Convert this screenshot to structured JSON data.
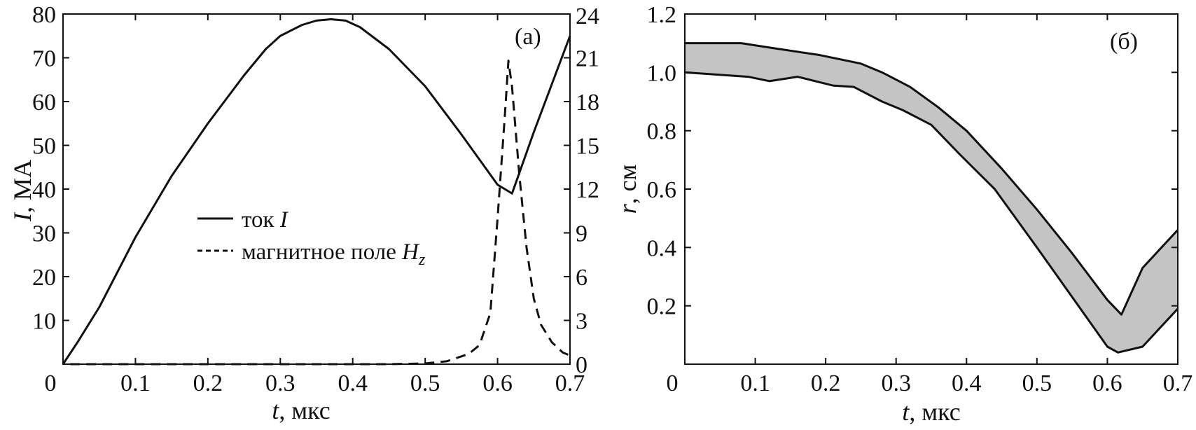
{
  "chart_data": [
    {
      "type": "line",
      "panel_label": "(а)",
      "x_axis": {
        "label_var": "t",
        "label_unit": ", мкс",
        "range": [
          0,
          0.7
        ],
        "ticks": [
          0,
          0.1,
          0.2,
          0.3,
          0.4,
          0.5,
          0.6,
          0.7
        ],
        "tick_labels": [
          "0",
          "0.1",
          "0.2",
          "0.3",
          "0.4",
          "0.5",
          "0.6",
          "0.7"
        ]
      },
      "y_axis_left": {
        "label_var": "I",
        "label_unit": ", МА",
        "range": [
          0,
          80
        ],
        "ticks": [
          0,
          10,
          20,
          30,
          40,
          50,
          60,
          70,
          80
        ],
        "tick_labels": [
          "",
          "10",
          "20",
          "30",
          "40",
          "50",
          "60",
          "70",
          "80"
        ]
      },
      "y_axis_right": {
        "range": [
          0,
          24
        ],
        "ticks": [
          0,
          3,
          6,
          9,
          12,
          15,
          18,
          21,
          24
        ],
        "tick_labels": [
          "0",
          "3",
          "6",
          "9",
          "12",
          "15",
          "18",
          "21",
          "24"
        ]
      },
      "legend": {
        "placement": "center-left",
        "entries": [
          {
            "style": "solid",
            "text": "ток ",
            "var": "I",
            "sub": ""
          },
          {
            "style": "dashed",
            "text": "магнитное поле ",
            "var": "H",
            "sub": "z"
          }
        ]
      },
      "series": [
        {
          "style": "solid",
          "axis": "left",
          "x": [
            0,
            0.02,
            0.05,
            0.1,
            0.15,
            0.2,
            0.25,
            0.28,
            0.3,
            0.33,
            0.35,
            0.37,
            0.39,
            0.41,
            0.45,
            0.5,
            0.55,
            0.6,
            0.62,
            0.65,
            0.7
          ],
          "y": [
            0,
            5,
            13,
            29,
            43,
            55,
            66,
            72,
            75,
            77.5,
            78.5,
            78.8,
            78.5,
            77,
            72,
            63.5,
            52.5,
            41,
            39,
            53,
            75
          ]
        },
        {
          "style": "dashed",
          "axis": "right",
          "x": [
            0.01,
            0.1,
            0.3,
            0.45,
            0.5,
            0.53,
            0.56,
            0.575,
            0.59,
            0.6,
            0.61,
            0.615,
            0.62,
            0.63,
            0.64,
            0.65,
            0.66,
            0.675,
            0.69,
            0.7
          ],
          "y": [
            0,
            0,
            0,
            0,
            0.05,
            0.2,
            0.7,
            1.3,
            3.5,
            10,
            17,
            20.8,
            19,
            13,
            8,
            4.5,
            2.7,
            1.5,
            0.8,
            0.6
          ]
        }
      ]
    },
    {
      "type": "area",
      "panel_label": "(б)",
      "x_axis": {
        "label_var": "t",
        "label_unit": ", мкс",
        "range": [
          0,
          0.7
        ],
        "ticks": [
          0,
          0.1,
          0.2,
          0.3,
          0.4,
          0.5,
          0.6,
          0.7
        ],
        "tick_labels": [
          "0",
          "0.1",
          "0.2",
          "0.3",
          "0.4",
          "0.5",
          "0.6",
          "0.7"
        ]
      },
      "y_axis": {
        "label_var": "r",
        "label_unit": ", см",
        "range": [
          0,
          1.2
        ],
        "ticks": [
          0,
          0.2,
          0.4,
          0.6,
          0.8,
          1.0,
          1.2
        ],
        "tick_labels": [
          "",
          "0.2",
          "0.4",
          "0.6",
          "0.8",
          "1.0",
          "1.2"
        ]
      },
      "fill_color": "#c4c4c4",
      "series": [
        {
          "name_key": "outer",
          "x": [
            0,
            0.08,
            0.12,
            0.19,
            0.25,
            0.28,
            0.32,
            0.36,
            0.4,
            0.45,
            0.5,
            0.55,
            0.6,
            0.62,
            0.65,
            0.7
          ],
          "y": [
            1.1,
            1.1,
            1.085,
            1.06,
            1.03,
            1.0,
            0.95,
            0.88,
            0.8,
            0.67,
            0.53,
            0.38,
            0.22,
            0.17,
            0.33,
            0.46
          ]
        },
        {
          "name_key": "inner",
          "x": [
            0,
            0.09,
            0.12,
            0.16,
            0.21,
            0.24,
            0.28,
            0.31,
            0.35,
            0.39,
            0.44,
            0.5,
            0.55,
            0.6,
            0.615,
            0.65,
            0.7
          ],
          "y": [
            1.0,
            0.985,
            0.97,
            0.985,
            0.955,
            0.95,
            0.9,
            0.87,
            0.82,
            0.72,
            0.6,
            0.4,
            0.23,
            0.06,
            0.04,
            0.06,
            0.19
          ]
        }
      ]
    }
  ]
}
